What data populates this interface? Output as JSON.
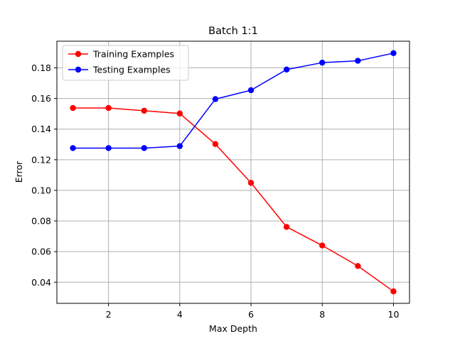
{
  "chart_data": {
    "type": "line",
    "title": "Batch 1:1",
    "xlabel": "Max Depth",
    "ylabel": "Error",
    "x": [
      1,
      2,
      3,
      4,
      5,
      6,
      7,
      8,
      9,
      10
    ],
    "series": [
      {
        "name": "Training Examples",
        "color": "#ff0000",
        "values": [
          0.1538,
          0.1538,
          0.152,
          0.1502,
          0.1302,
          0.1049,
          0.0761,
          0.064,
          0.0506,
          0.034
        ]
      },
      {
        "name": "Testing Examples",
        "color": "#0000ff",
        "values": [
          0.1276,
          0.1276,
          0.1276,
          0.1289,
          0.1596,
          0.1654,
          0.1789,
          0.1834,
          0.1846,
          0.1896
        ]
      }
    ],
    "xlim": [
      0.55,
      10.45
    ],
    "ylim": [
      0.0262,
      0.1974
    ],
    "xticks": [
      2,
      4,
      6,
      8,
      10
    ],
    "yticks": [
      0.04,
      0.06,
      0.08,
      0.1,
      0.12,
      0.14,
      0.16,
      0.18
    ],
    "ytick_labels": [
      "0.04",
      "0.06",
      "0.08",
      "0.10",
      "0.12",
      "0.14",
      "0.16",
      "0.18"
    ],
    "xtick_labels": [
      "2",
      "4",
      "6",
      "8",
      "10"
    ],
    "grid": true,
    "legend": "upper-left"
  }
}
